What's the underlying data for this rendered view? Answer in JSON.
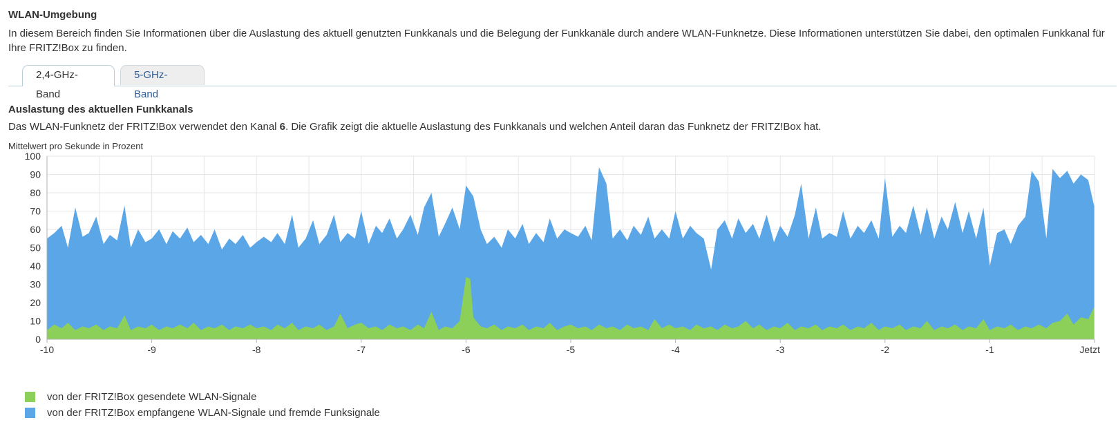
{
  "section": {
    "title": "WLAN-Umgebung",
    "intro": "In diesem Bereich finden Sie Informationen über die Auslastung des aktuell genutzten Funkkanals und die Belegung der Funkkanäle durch andere WLAN-Funknetze. Diese Informationen unterstützen Sie dabei, den optimalen Funkkanal für Ihre FRITZ!Box zu finden."
  },
  "tabs": [
    {
      "label": "2,4-GHz-Band",
      "active": true
    },
    {
      "label": "5-GHz-Band",
      "active": false
    }
  ],
  "channel": {
    "title": "Auslastung des aktuellen Funkkanals",
    "desc_before": "Das WLAN-Funknetz der FRITZ!Box verwendet den Kanal ",
    "number": "6",
    "desc_after": ". Die Grafik zeigt die aktuelle Auslastung des Funkkanals und welchen Anteil daran das Funknetz der FRITZ!Box hat.",
    "unit_label": "Mittelwert pro Sekunde in Prozent"
  },
  "colors": {
    "sent": "#8cd05a",
    "received": "#5aa6e6",
    "grid": "#e6e6e6",
    "axis": "#b0b0b0"
  },
  "chart_data": {
    "type": "area",
    "x_ticks": [
      "-10",
      "-9",
      "-8",
      "-7",
      "-6",
      "-5",
      "-4",
      "-3",
      "-2",
      "-1",
      "Jetzt"
    ],
    "y_ticks": [
      "0",
      "10",
      "20",
      "30",
      "40",
      "50",
      "60",
      "70",
      "80",
      "90",
      "100"
    ],
    "xlim": [
      -10,
      0
    ],
    "ylim": [
      0,
      100
    ],
    "grid": true,
    "stacked": false,
    "legend_placement": "bottom-left",
    "series": [
      {
        "name": "von der FRITZ!Box empfangene WLAN-Signale und fremde Funksignale",
        "color": "#5aa6e6",
        "points": [
          [
            -10.0,
            55
          ],
          [
            -9.93,
            58
          ],
          [
            -9.86,
            62
          ],
          [
            -9.8,
            50
          ],
          [
            -9.73,
            72
          ],
          [
            -9.66,
            56
          ],
          [
            -9.6,
            58
          ],
          [
            -9.53,
            67
          ],
          [
            -9.46,
            52
          ],
          [
            -9.4,
            57
          ],
          [
            -9.33,
            54
          ],
          [
            -9.26,
            73
          ],
          [
            -9.2,
            50
          ],
          [
            -9.13,
            60
          ],
          [
            -9.06,
            53
          ],
          [
            -9.0,
            55
          ],
          [
            -8.93,
            60
          ],
          [
            -8.86,
            52
          ],
          [
            -8.8,
            59
          ],
          [
            -8.73,
            55
          ],
          [
            -8.66,
            61
          ],
          [
            -8.6,
            53
          ],
          [
            -8.53,
            57
          ],
          [
            -8.46,
            52
          ],
          [
            -8.4,
            60
          ],
          [
            -8.33,
            49
          ],
          [
            -8.26,
            55
          ],
          [
            -8.2,
            52
          ],
          [
            -8.13,
            57
          ],
          [
            -8.06,
            50
          ],
          [
            -8.0,
            53
          ],
          [
            -7.93,
            56
          ],
          [
            -7.86,
            53
          ],
          [
            -7.8,
            58
          ],
          [
            -7.73,
            52
          ],
          [
            -7.66,
            68
          ],
          [
            -7.6,
            50
          ],
          [
            -7.53,
            55
          ],
          [
            -7.46,
            65
          ],
          [
            -7.4,
            52
          ],
          [
            -7.33,
            57
          ],
          [
            -7.26,
            68
          ],
          [
            -7.2,
            53
          ],
          [
            -7.13,
            58
          ],
          [
            -7.06,
            55
          ],
          [
            -7.0,
            70
          ],
          [
            -6.93,
            52
          ],
          [
            -6.86,
            62
          ],
          [
            -6.8,
            58
          ],
          [
            -6.73,
            66
          ],
          [
            -6.66,
            55
          ],
          [
            -6.6,
            60
          ],
          [
            -6.53,
            68
          ],
          [
            -6.46,
            57
          ],
          [
            -6.4,
            72
          ],
          [
            -6.33,
            80
          ],
          [
            -6.26,
            56
          ],
          [
            -6.2,
            63
          ],
          [
            -6.13,
            72
          ],
          [
            -6.06,
            60
          ],
          [
            -6.0,
            84
          ],
          [
            -5.93,
            78
          ],
          [
            -5.86,
            60
          ],
          [
            -5.8,
            52
          ],
          [
            -5.73,
            56
          ],
          [
            -5.66,
            50
          ],
          [
            -5.6,
            60
          ],
          [
            -5.53,
            55
          ],
          [
            -5.46,
            63
          ],
          [
            -5.4,
            52
          ],
          [
            -5.33,
            58
          ],
          [
            -5.26,
            53
          ],
          [
            -5.2,
            66
          ],
          [
            -5.13,
            55
          ],
          [
            -5.06,
            60
          ],
          [
            -5.0,
            58
          ],
          [
            -4.93,
            56
          ],
          [
            -4.86,
            62
          ],
          [
            -4.8,
            54
          ],
          [
            -4.73,
            94
          ],
          [
            -4.66,
            85
          ],
          [
            -4.6,
            55
          ],
          [
            -4.53,
            60
          ],
          [
            -4.46,
            54
          ],
          [
            -4.4,
            62
          ],
          [
            -4.33,
            57
          ],
          [
            -4.26,
            67
          ],
          [
            -4.2,
            55
          ],
          [
            -4.13,
            60
          ],
          [
            -4.06,
            55
          ],
          [
            -4.0,
            70
          ],
          [
            -3.93,
            55
          ],
          [
            -3.86,
            62
          ],
          [
            -3.8,
            58
          ],
          [
            -3.73,
            55
          ],
          [
            -3.66,
            38
          ],
          [
            -3.6,
            60
          ],
          [
            -3.53,
            65
          ],
          [
            -3.46,
            55
          ],
          [
            -3.4,
            66
          ],
          [
            -3.33,
            58
          ],
          [
            -3.26,
            63
          ],
          [
            -3.2,
            55
          ],
          [
            -3.13,
            68
          ],
          [
            -3.06,
            53
          ],
          [
            -3.0,
            62
          ],
          [
            -2.93,
            56
          ],
          [
            -2.86,
            68
          ],
          [
            -2.8,
            85
          ],
          [
            -2.73,
            55
          ],
          [
            -2.66,
            72
          ],
          [
            -2.6,
            55
          ],
          [
            -2.53,
            58
          ],
          [
            -2.46,
            56
          ],
          [
            -2.4,
            70
          ],
          [
            -2.33,
            55
          ],
          [
            -2.26,
            62
          ],
          [
            -2.2,
            58
          ],
          [
            -2.13,
            65
          ],
          [
            -2.06,
            55
          ],
          [
            -2.0,
            88
          ],
          [
            -1.93,
            56
          ],
          [
            -1.86,
            62
          ],
          [
            -1.8,
            58
          ],
          [
            -1.73,
            73
          ],
          [
            -1.66,
            57
          ],
          [
            -1.6,
            72
          ],
          [
            -1.53,
            55
          ],
          [
            -1.46,
            67
          ],
          [
            -1.4,
            60
          ],
          [
            -1.33,
            75
          ],
          [
            -1.26,
            58
          ],
          [
            -1.2,
            70
          ],
          [
            -1.13,
            55
          ],
          [
            -1.06,
            72
          ],
          [
            -1.0,
            40
          ],
          [
            -0.93,
            58
          ],
          [
            -0.86,
            60
          ],
          [
            -0.8,
            52
          ],
          [
            -0.73,
            62
          ],
          [
            -0.66,
            67
          ],
          [
            -0.6,
            92
          ],
          [
            -0.53,
            86
          ],
          [
            -0.46,
            55
          ],
          [
            -0.4,
            93
          ],
          [
            -0.33,
            88
          ],
          [
            -0.26,
            92
          ],
          [
            -0.2,
            85
          ],
          [
            -0.13,
            90
          ],
          [
            -0.06,
            87
          ],
          [
            0.0,
            72
          ]
        ]
      },
      {
        "name": "von der FRITZ!Box gesendete WLAN-Signale",
        "color": "#8cd05a",
        "points": [
          [
            -10.0,
            5
          ],
          [
            -9.93,
            8
          ],
          [
            -9.86,
            6
          ],
          [
            -9.8,
            9
          ],
          [
            -9.73,
            5
          ],
          [
            -9.66,
            7
          ],
          [
            -9.6,
            6
          ],
          [
            -9.53,
            8
          ],
          [
            -9.46,
            5
          ],
          [
            -9.4,
            7
          ],
          [
            -9.33,
            6
          ],
          [
            -9.26,
            13
          ],
          [
            -9.2,
            5
          ],
          [
            -9.13,
            7
          ],
          [
            -9.06,
            6
          ],
          [
            -9.0,
            8
          ],
          [
            -8.93,
            5
          ],
          [
            -8.86,
            7
          ],
          [
            -8.8,
            6
          ],
          [
            -8.73,
            8
          ],
          [
            -8.66,
            6
          ],
          [
            -8.6,
            9
          ],
          [
            -8.53,
            5
          ],
          [
            -8.46,
            7
          ],
          [
            -8.4,
            6
          ],
          [
            -8.33,
            8
          ],
          [
            -8.26,
            5
          ],
          [
            -8.2,
            7
          ],
          [
            -8.13,
            6
          ],
          [
            -8.06,
            8
          ],
          [
            -8.0,
            6
          ],
          [
            -7.93,
            7
          ],
          [
            -7.86,
            5
          ],
          [
            -7.8,
            8
          ],
          [
            -7.73,
            6
          ],
          [
            -7.66,
            9
          ],
          [
            -7.6,
            5
          ],
          [
            -7.53,
            7
          ],
          [
            -7.46,
            6
          ],
          [
            -7.4,
            8
          ],
          [
            -7.33,
            5
          ],
          [
            -7.26,
            7
          ],
          [
            -7.2,
            14
          ],
          [
            -7.13,
            6
          ],
          [
            -7.06,
            8
          ],
          [
            -7.0,
            9
          ],
          [
            -6.93,
            6
          ],
          [
            -6.86,
            7
          ],
          [
            -6.8,
            5
          ],
          [
            -6.73,
            8
          ],
          [
            -6.66,
            6
          ],
          [
            -6.6,
            7
          ],
          [
            -6.53,
            5
          ],
          [
            -6.46,
            8
          ],
          [
            -6.4,
            6
          ],
          [
            -6.33,
            15
          ],
          [
            -6.26,
            5
          ],
          [
            -6.2,
            7
          ],
          [
            -6.13,
            6
          ],
          [
            -6.06,
            10
          ],
          [
            -6.0,
            34
          ],
          [
            -5.96,
            33
          ],
          [
            -5.93,
            12
          ],
          [
            -5.86,
            7
          ],
          [
            -5.8,
            6
          ],
          [
            -5.73,
            8
          ],
          [
            -5.66,
            5
          ],
          [
            -5.6,
            7
          ],
          [
            -5.53,
            6
          ],
          [
            -5.46,
            8
          ],
          [
            -5.4,
            5
          ],
          [
            -5.33,
            7
          ],
          [
            -5.26,
            6
          ],
          [
            -5.2,
            9
          ],
          [
            -5.13,
            5
          ],
          [
            -5.06,
            7
          ],
          [
            -5.0,
            8
          ],
          [
            -4.93,
            6
          ],
          [
            -4.86,
            7
          ],
          [
            -4.8,
            5
          ],
          [
            -4.73,
            8
          ],
          [
            -4.66,
            6
          ],
          [
            -4.6,
            7
          ],
          [
            -4.53,
            5
          ],
          [
            -4.46,
            8
          ],
          [
            -4.4,
            6
          ],
          [
            -4.33,
            7
          ],
          [
            -4.26,
            5
          ],
          [
            -4.2,
            11
          ],
          [
            -4.13,
            6
          ],
          [
            -4.06,
            8
          ],
          [
            -4.0,
            6
          ],
          [
            -3.93,
            7
          ],
          [
            -3.86,
            5
          ],
          [
            -3.8,
            8
          ],
          [
            -3.73,
            6
          ],
          [
            -3.66,
            7
          ],
          [
            -3.6,
            5
          ],
          [
            -3.53,
            8
          ],
          [
            -3.46,
            6
          ],
          [
            -3.4,
            7
          ],
          [
            -3.33,
            10
          ],
          [
            -3.26,
            6
          ],
          [
            -3.2,
            8
          ],
          [
            -3.13,
            5
          ],
          [
            -3.06,
            7
          ],
          [
            -3.0,
            6
          ],
          [
            -2.93,
            9
          ],
          [
            -2.86,
            5
          ],
          [
            -2.8,
            7
          ],
          [
            -2.73,
            6
          ],
          [
            -2.66,
            8
          ],
          [
            -2.6,
            5
          ],
          [
            -2.53,
            7
          ],
          [
            -2.46,
            6
          ],
          [
            -2.4,
            8
          ],
          [
            -2.33,
            5
          ],
          [
            -2.26,
            7
          ],
          [
            -2.2,
            6
          ],
          [
            -2.13,
            9
          ],
          [
            -2.06,
            5
          ],
          [
            -2.0,
            7
          ],
          [
            -1.93,
            6
          ],
          [
            -1.86,
            8
          ],
          [
            -1.8,
            5
          ],
          [
            -1.73,
            7
          ],
          [
            -1.66,
            6
          ],
          [
            -1.6,
            10
          ],
          [
            -1.53,
            5
          ],
          [
            -1.46,
            7
          ],
          [
            -1.4,
            6
          ],
          [
            -1.33,
            8
          ],
          [
            -1.26,
            5
          ],
          [
            -1.2,
            7
          ],
          [
            -1.13,
            6
          ],
          [
            -1.06,
            11
          ],
          [
            -1.0,
            5
          ],
          [
            -0.93,
            7
          ],
          [
            -0.86,
            6
          ],
          [
            -0.8,
            8
          ],
          [
            -0.73,
            5
          ],
          [
            -0.66,
            7
          ],
          [
            -0.6,
            6
          ],
          [
            -0.53,
            8
          ],
          [
            -0.46,
            6
          ],
          [
            -0.4,
            9
          ],
          [
            -0.33,
            10
          ],
          [
            -0.26,
            14
          ],
          [
            -0.2,
            8
          ],
          [
            -0.13,
            12
          ],
          [
            -0.06,
            11
          ],
          [
            0.0,
            18
          ]
        ]
      }
    ]
  },
  "legend": [
    {
      "label": "von der FRITZ!Box gesendete WLAN-Signale",
      "color": "#8cd05a"
    },
    {
      "label": "von der FRITZ!Box empfangene WLAN-Signale und fremde Funksignale",
      "color": "#5aa6e6"
    }
  ]
}
